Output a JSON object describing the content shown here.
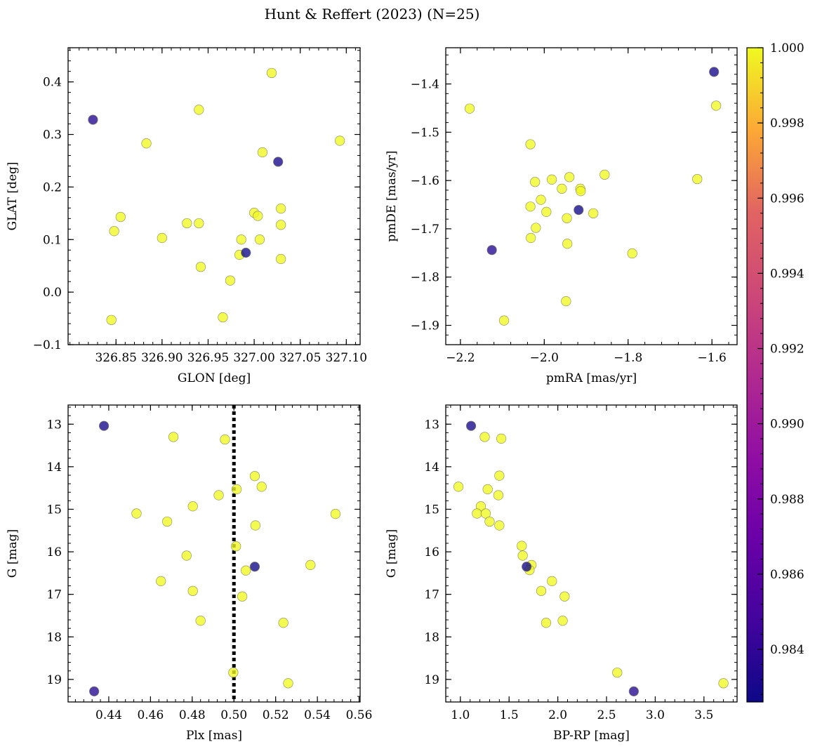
{
  "figure": {
    "title": "Hunt & Reffert (2023) (N=25)"
  },
  "colorbar": {
    "colormap": "plasma",
    "range": [
      0.9826,
      1.0
    ],
    "ticks": [
      "1.000",
      "0.998",
      "0.996",
      "0.994",
      "0.992",
      "0.990",
      "0.988",
      "0.986",
      "0.984"
    ]
  },
  "chart_data": [
    {
      "type": "scatter",
      "xlabel": "GLON [deg]",
      "ylabel": "GLAT [deg]",
      "xlim": [
        326.798,
        327.115
      ],
      "ylim": [
        -0.1,
        0.465
      ],
      "xticks": [
        "326.85",
        "326.90",
        "326.95",
        "327.00",
        "327.05",
        "327.10"
      ],
      "yticks": [
        "−0.1",
        "0.0",
        "0.1",
        "0.2",
        "0.3",
        "0.4"
      ],
      "points": [
        {
          "x": 326.825,
          "y": 0.328,
          "c": 0.9835
        },
        {
          "x": 327.026,
          "y": 0.248,
          "c": 0.9829
        },
        {
          "x": 326.991,
          "y": 0.075,
          "c": 0.9827
        },
        {
          "x": 327.019,
          "y": 0.417,
          "c": 1.0
        },
        {
          "x": 326.94,
          "y": 0.347,
          "c": 1.0
        },
        {
          "x": 327.093,
          "y": 0.288,
          "c": 1.0
        },
        {
          "x": 326.883,
          "y": 0.283,
          "c": 1.0
        },
        {
          "x": 327.009,
          "y": 0.266,
          "c": 1.0
        },
        {
          "x": 327.029,
          "y": 0.159,
          "c": 1.0
        },
        {
          "x": 327.0,
          "y": 0.151,
          "c": 1.0
        },
        {
          "x": 326.855,
          "y": 0.143,
          "c": 1.0
        },
        {
          "x": 327.004,
          "y": 0.145,
          "c": 1.0
        },
        {
          "x": 326.927,
          "y": 0.131,
          "c": 1.0
        },
        {
          "x": 326.94,
          "y": 0.131,
          "c": 1.0
        },
        {
          "x": 327.029,
          "y": 0.128,
          "c": 1.0
        },
        {
          "x": 326.848,
          "y": 0.116,
          "c": 1.0
        },
        {
          "x": 326.9,
          "y": 0.103,
          "c": 1.0
        },
        {
          "x": 326.986,
          "y": 0.1,
          "c": 1.0
        },
        {
          "x": 327.006,
          "y": 0.1,
          "c": 1.0
        },
        {
          "x": 326.984,
          "y": 0.071,
          "c": 1.0
        },
        {
          "x": 327.029,
          "y": 0.063,
          "c": 1.0
        },
        {
          "x": 326.942,
          "y": 0.048,
          "c": 1.0
        },
        {
          "x": 326.974,
          "y": 0.022,
          "c": 1.0
        },
        {
          "x": 326.966,
          "y": -0.048,
          "c": 1.0
        },
        {
          "x": 326.845,
          "y": -0.053,
          "c": 1.0
        }
      ]
    },
    {
      "type": "scatter",
      "xlabel": "pmRA [mas/yr]",
      "ylabel": "pmDE [mas/yr]",
      "xlim": [
        -2.235,
        -1.54
      ],
      "ylim": [
        -1.94,
        -1.325
      ],
      "xticks": [
        "−2.2",
        "−2.0",
        "−1.8",
        "−1.6"
      ],
      "yticks": [
        "−1.4",
        "−1.5",
        "−1.6",
        "−1.7",
        "−1.8",
        "−1.9"
      ],
      "points": [
        {
          "x": -1.595,
          "y": -1.375,
          "c": 0.9829
        },
        {
          "x": -2.125,
          "y": -1.744,
          "c": 0.9835
        },
        {
          "x": -1.918,
          "y": -1.661,
          "c": 0.9827
        },
        {
          "x": -2.178,
          "y": -1.451,
          "c": 1.0
        },
        {
          "x": -1.59,
          "y": -1.445,
          "c": 1.0
        },
        {
          "x": -2.033,
          "y": -1.525,
          "c": 1.0
        },
        {
          "x": -1.856,
          "y": -1.588,
          "c": 1.0
        },
        {
          "x": -1.94,
          "y": -1.593,
          "c": 1.0
        },
        {
          "x": -1.982,
          "y": -1.598,
          "c": 1.0
        },
        {
          "x": -1.635,
          "y": -1.597,
          "c": 1.0
        },
        {
          "x": -2.022,
          "y": -1.603,
          "c": 1.0
        },
        {
          "x": -1.958,
          "y": -1.617,
          "c": 1.0
        },
        {
          "x": -1.914,
          "y": -1.617,
          "c": 1.0
        },
        {
          "x": -1.913,
          "y": -1.622,
          "c": 1.0
        },
        {
          "x": -2.008,
          "y": -1.64,
          "c": 1.0
        },
        {
          "x": -2.033,
          "y": -1.654,
          "c": 1.0
        },
        {
          "x": -1.995,
          "y": -1.665,
          "c": 1.0
        },
        {
          "x": -1.883,
          "y": -1.668,
          "c": 1.0
        },
        {
          "x": -1.946,
          "y": -1.678,
          "c": 1.0
        },
        {
          "x": -2.02,
          "y": -1.698,
          "c": 1.0
        },
        {
          "x": -2.032,
          "y": -1.719,
          "c": 1.0
        },
        {
          "x": -1.945,
          "y": -1.731,
          "c": 1.0
        },
        {
          "x": -1.79,
          "y": -1.751,
          "c": 1.0
        },
        {
          "x": -1.948,
          "y": -1.85,
          "c": 1.0
        },
        {
          "x": -2.096,
          "y": -1.89,
          "c": 1.0
        }
      ]
    },
    {
      "type": "scatter",
      "xlabel": "Plx [mas]",
      "ylabel": "G [mag]",
      "xlim": [
        0.4205,
        0.5605
      ],
      "ylim": [
        19.53,
        12.55
      ],
      "y_inverted": true,
      "vline": {
        "x": 0.5,
        "style": "dotted",
        "color": "#000000"
      },
      "xticks": [
        "0.44",
        "0.46",
        "0.48",
        "0.50",
        "0.52",
        "0.54",
        "0.56"
      ],
      "yticks": [
        "13",
        "14",
        "15",
        "16",
        "17",
        "18",
        "19"
      ],
      "points": [
        {
          "x": 0.4377,
          "y": 13.04,
          "c": 0.9829
        },
        {
          "x": 0.51,
          "y": 16.35,
          "c": 0.9827
        },
        {
          "x": 0.433,
          "y": 19.28,
          "c": 0.9835
        },
        {
          "x": 0.471,
          "y": 13.3,
          "c": 1.0
        },
        {
          "x": 0.4957,
          "y": 13.36,
          "c": 1.0
        },
        {
          "x": 0.51,
          "y": 14.22,
          "c": 1.0
        },
        {
          "x": 0.5133,
          "y": 14.47,
          "c": 1.0
        },
        {
          "x": 0.5013,
          "y": 14.53,
          "c": 1.0
        },
        {
          "x": 0.4927,
          "y": 14.67,
          "c": 1.0
        },
        {
          "x": 0.4803,
          "y": 14.93,
          "c": 1.0
        },
        {
          "x": 0.4533,
          "y": 15.1,
          "c": 1.0
        },
        {
          "x": 0.5487,
          "y": 15.11,
          "c": 1.0
        },
        {
          "x": 0.468,
          "y": 15.29,
          "c": 1.0
        },
        {
          "x": 0.5103,
          "y": 15.38,
          "c": 1.0
        },
        {
          "x": 0.501,
          "y": 15.87,
          "c": 1.0
        },
        {
          "x": 0.4773,
          "y": 16.09,
          "c": 1.0
        },
        {
          "x": 0.5367,
          "y": 16.31,
          "c": 1.0
        },
        {
          "x": 0.5057,
          "y": 16.44,
          "c": 1.0
        },
        {
          "x": 0.465,
          "y": 16.69,
          "c": 1.0
        },
        {
          "x": 0.4803,
          "y": 16.92,
          "c": 1.0
        },
        {
          "x": 0.504,
          "y": 17.05,
          "c": 1.0
        },
        {
          "x": 0.484,
          "y": 17.62,
          "c": 1.0
        },
        {
          "x": 0.5237,
          "y": 17.67,
          "c": 1.0
        },
        {
          "x": 0.4997,
          "y": 18.84,
          "c": 1.0
        },
        {
          "x": 0.526,
          "y": 19.09,
          "c": 1.0
        }
      ]
    },
    {
      "type": "scatter",
      "xlabel": "BP-RP [mag]",
      "ylabel": "G [mag]",
      "xlim": [
        0.85,
        3.84
      ],
      "ylim": [
        19.53,
        12.55
      ],
      "y_inverted": true,
      "xticks": [
        "1.0",
        "1.5",
        "2.0",
        "2.5",
        "3.0",
        "3.5"
      ],
      "yticks": [
        "13",
        "14",
        "15",
        "16",
        "17",
        "18",
        "19"
      ],
      "points": [
        {
          "x": 1.11,
          "y": 13.04,
          "c": 0.9829
        },
        {
          "x": 1.68,
          "y": 16.35,
          "c": 0.9827
        },
        {
          "x": 2.78,
          "y": 19.28,
          "c": 0.9835
        },
        {
          "x": 1.25,
          "y": 13.3,
          "c": 1.0
        },
        {
          "x": 1.42,
          "y": 13.34,
          "c": 1.0
        },
        {
          "x": 1.4,
          "y": 14.21,
          "c": 1.0
        },
        {
          "x": 0.98,
          "y": 14.47,
          "c": 1.0
        },
        {
          "x": 1.28,
          "y": 14.53,
          "c": 1.0
        },
        {
          "x": 1.39,
          "y": 14.67,
          "c": 1.0
        },
        {
          "x": 1.21,
          "y": 14.93,
          "c": 1.0
        },
        {
          "x": 1.17,
          "y": 15.1,
          "c": 1.0
        },
        {
          "x": 1.26,
          "y": 15.1,
          "c": 1.0
        },
        {
          "x": 1.3,
          "y": 15.29,
          "c": 1.0
        },
        {
          "x": 1.4,
          "y": 15.38,
          "c": 1.0
        },
        {
          "x": 1.63,
          "y": 15.86,
          "c": 1.0
        },
        {
          "x": 1.64,
          "y": 16.09,
          "c": 1.0
        },
        {
          "x": 1.73,
          "y": 16.31,
          "c": 1.0
        },
        {
          "x": 1.71,
          "y": 16.43,
          "c": 1.0
        },
        {
          "x": 1.94,
          "y": 16.69,
          "c": 1.0
        },
        {
          "x": 1.83,
          "y": 16.92,
          "c": 1.0
        },
        {
          "x": 2.07,
          "y": 17.05,
          "c": 1.0
        },
        {
          "x": 2.05,
          "y": 17.62,
          "c": 1.0
        },
        {
          "x": 1.88,
          "y": 17.67,
          "c": 1.0
        },
        {
          "x": 2.61,
          "y": 18.84,
          "c": 1.0
        },
        {
          "x": 3.7,
          "y": 19.09,
          "c": 1.0
        }
      ]
    }
  ]
}
